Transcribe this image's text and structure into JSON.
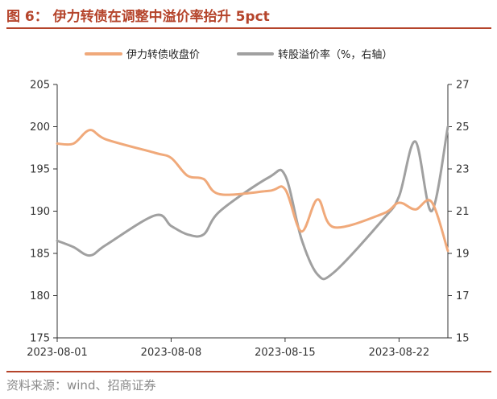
{
  "figure": {
    "title": "图 6： 伊力转债在调整中溢价率抬升 5pct",
    "source": "资料来源：wind、招商证券"
  },
  "colors": {
    "accent": "#b5442b",
    "series_left": "#f0a97a",
    "series_right": "#a0a0a0"
  },
  "chart_data": {
    "type": "line",
    "legend_position": "top",
    "grid": false,
    "x_ticks": [
      "2023-08-01",
      "2023-08-08",
      "2023-08-15",
      "2023-08-22"
    ],
    "x_range": [
      "2023-08-01",
      "2023-08-25"
    ],
    "y_left": {
      "ylim": [
        175,
        205
      ],
      "ticks": [
        175,
        180,
        185,
        190,
        195,
        200,
        205
      ]
    },
    "y_right": {
      "ylim": [
        15,
        27
      ],
      "ticks": [
        15,
        17,
        19,
        21,
        23,
        25,
        27
      ]
    },
    "series": [
      {
        "name": "伊力转债收盘价",
        "axis": "left",
        "color": "#f0a97a",
        "points": [
          [
            "2023-08-01",
            198.0
          ],
          [
            "2023-08-02",
            198.0
          ],
          [
            "2023-08-03",
            199.6
          ],
          [
            "2023-08-04",
            198.5
          ],
          [
            "2023-08-07",
            196.9
          ],
          [
            "2023-08-08",
            196.3
          ],
          [
            "2023-08-09",
            194.2
          ],
          [
            "2023-08-10",
            193.8
          ],
          [
            "2023-08-11",
            192.0
          ],
          [
            "2023-08-14",
            192.4
          ],
          [
            "2023-08-15",
            192.6
          ],
          [
            "2023-08-16",
            187.6
          ],
          [
            "2023-08-17",
            191.4
          ],
          [
            "2023-08-18",
            188.1
          ],
          [
            "2023-08-21",
            189.7
          ],
          [
            "2023-08-22",
            191.0
          ],
          [
            "2023-08-23",
            190.2
          ],
          [
            "2023-08-24",
            191.1
          ],
          [
            "2023-08-25",
            185.3
          ]
        ]
      },
      {
        "name": "转股溢价率（%，右轴）",
        "axis": "right",
        "color": "#a0a0a0",
        "points": [
          [
            "2023-08-01",
            19.6
          ],
          [
            "2023-08-02",
            19.3
          ],
          [
            "2023-08-03",
            18.9
          ],
          [
            "2023-08-04",
            19.4
          ],
          [
            "2023-08-07",
            20.8
          ],
          [
            "2023-08-08",
            20.3
          ],
          [
            "2023-08-09",
            19.9
          ],
          [
            "2023-08-10",
            19.9
          ],
          [
            "2023-08-11",
            21.0
          ],
          [
            "2023-08-14",
            22.6
          ],
          [
            "2023-08-15",
            22.7
          ],
          [
            "2023-08-16",
            19.7
          ],
          [
            "2023-08-17",
            18.0
          ],
          [
            "2023-08-18",
            18.1
          ],
          [
            "2023-08-21",
            20.6
          ],
          [
            "2023-08-22",
            21.7
          ],
          [
            "2023-08-23",
            24.3
          ],
          [
            "2023-08-24",
            21.0
          ],
          [
            "2023-08-25",
            25.0
          ]
        ]
      }
    ]
  }
}
